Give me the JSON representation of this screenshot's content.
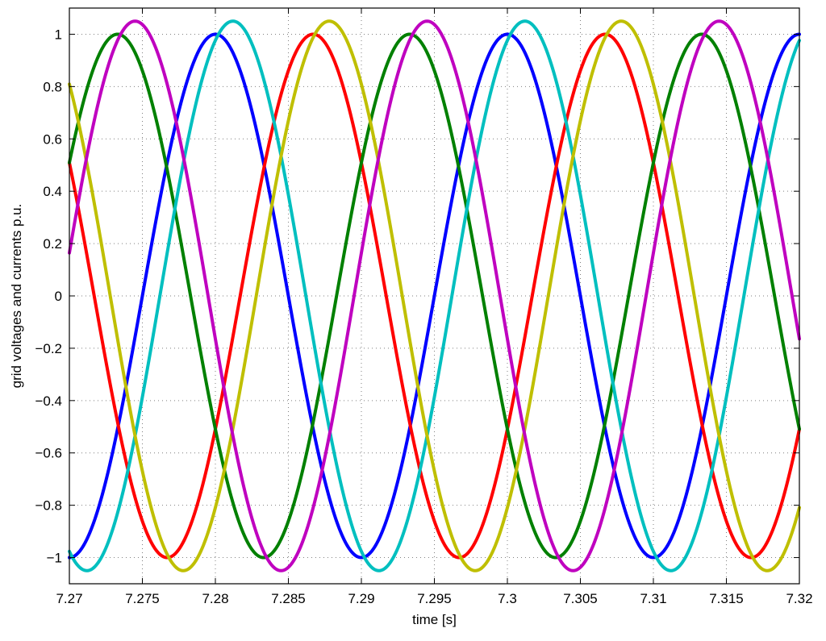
{
  "chart_data": {
    "type": "line",
    "title": "",
    "xlabel": "time [s]",
    "ylabel": "grid voltages and currents p.u.",
    "xlim": [
      7.27,
      7.32
    ],
    "ylim": [
      -1.1,
      1.1
    ],
    "grid": true,
    "legend": "none",
    "xticks": [
      7.27,
      7.275,
      7.28,
      7.285,
      7.29,
      7.295,
      7.3,
      7.305,
      7.31,
      7.315,
      7.32
    ],
    "xtick_labels": [
      "7.27",
      "7.275",
      "7.28",
      "7.285",
      "7.29",
      "7.295",
      "7.3",
      "7.305",
      "7.31",
      "7.315",
      "7.32"
    ],
    "yticks": [
      -1,
      -0.8,
      -0.6,
      -0.4,
      -0.2,
      0,
      0.2,
      0.4,
      0.6,
      0.8,
      1
    ],
    "ytick_labels": [
      "−1",
      "−0.8",
      "−0.6",
      "−0.4",
      "−0.2",
      "0",
      "0.2",
      "0.4",
      "0.6",
      "0.8",
      "1"
    ],
    "series": [
      {
        "color": "#0000ff",
        "kind": "sinusoid",
        "amplitude": 1.0,
        "frequency_hz": 50,
        "peak_time_s": 7.28
      },
      {
        "color": "#ff0000",
        "kind": "sinusoid",
        "amplitude": 1.0,
        "frequency_hz": 50,
        "peak_time_s": 7.2867
      },
      {
        "color": "#008000",
        "kind": "sinusoid",
        "amplitude": 1.0,
        "frequency_hz": 50,
        "peak_time_s": 7.2733
      },
      {
        "color": "#00bfbf",
        "kind": "sinusoid",
        "amplitude": 1.05,
        "frequency_hz": 50,
        "peak_time_s": 7.2812
      },
      {
        "color": "#bfbf00",
        "kind": "sinusoid",
        "amplitude": 1.05,
        "frequency_hz": 50,
        "peak_time_s": 7.2878
      },
      {
        "color": "#bf00bf",
        "kind": "sinusoid",
        "amplitude": 1.05,
        "frequency_hz": 50,
        "peak_time_s": 7.2745
      }
    ]
  }
}
